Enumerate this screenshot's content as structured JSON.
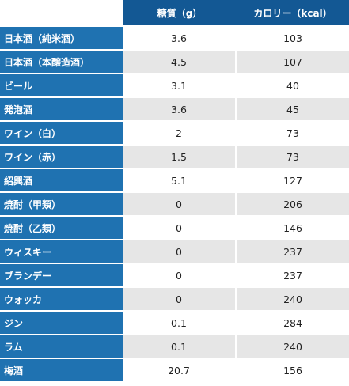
{
  "header": {
    "col1": "糖質（g）",
    "col2": "カロリー（kcal）"
  },
  "rows": [
    {
      "name": "日本酒（純米酒）",
      "sugar": "3.6",
      "kcal": "103"
    },
    {
      "name": "日本酒（本醸造酒）",
      "sugar": "4.5",
      "kcal": "107"
    },
    {
      "name": "ビール",
      "sugar": "3.1",
      "kcal": "40"
    },
    {
      "name": "発泡酒",
      "sugar": "3.6",
      "kcal": "45"
    },
    {
      "name": "ワイン（白）",
      "sugar": "2",
      "kcal": "73"
    },
    {
      "name": "ワイン（赤）",
      "sugar": "1.5",
      "kcal": "73"
    },
    {
      "name": "紹興酒",
      "sugar": "5.1",
      "kcal": "127"
    },
    {
      "name": "焼酎（甲類）",
      "sugar": "0",
      "kcal": "206"
    },
    {
      "name": "焼酎（乙類）",
      "sugar": "0",
      "kcal": "146"
    },
    {
      "name": "ウィスキー",
      "sugar": "0",
      "kcal": "237"
    },
    {
      "name": "ブランデー",
      "sugar": "0",
      "kcal": "237"
    },
    {
      "name": "ウォッカ",
      "sugar": "0",
      "kcal": "240"
    },
    {
      "name": "ジン",
      "sugar": "0.1",
      "kcal": "284"
    },
    {
      "name": "ラム",
      "sugar": "0.1",
      "kcal": "240"
    },
    {
      "name": "梅酒",
      "sugar": "20.7",
      "kcal": "156"
    }
  ],
  "colors": {
    "header_bg": "#135894",
    "name_bg": "#1f72b1",
    "stripe": "#e6e6e6"
  }
}
